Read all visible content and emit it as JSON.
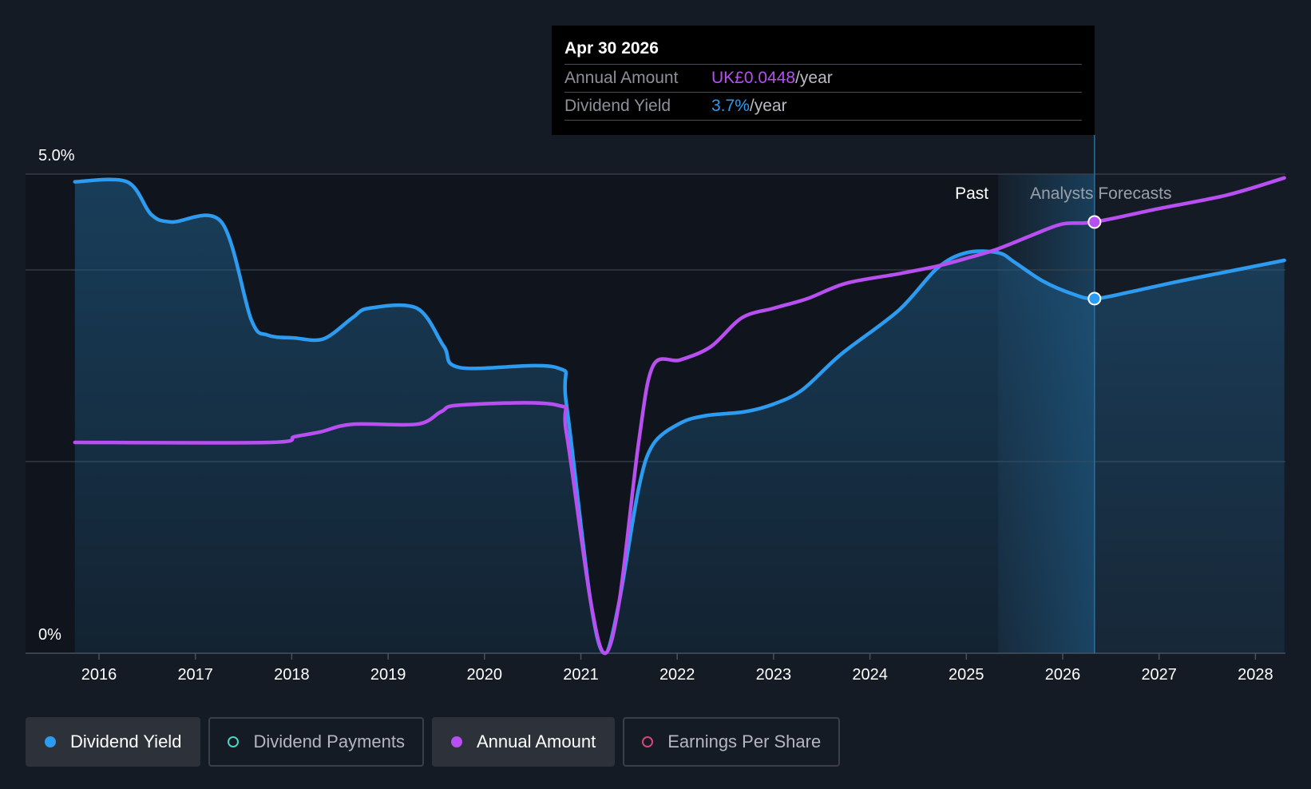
{
  "tooltip": {
    "date": "Apr 30 2026",
    "rows": [
      {
        "name": "Annual Amount",
        "value": "UK£0.0448",
        "unit": "/year"
      },
      {
        "name": "Dividend Yield",
        "value": "3.7%",
        "unit": "/year"
      }
    ]
  },
  "regions": {
    "past": "Past",
    "forecast": "Analysts Forecasts"
  },
  "legend": [
    {
      "label": "Dividend Yield",
      "color": "#2d9cf0",
      "active": true,
      "filled": true
    },
    {
      "label": "Dividend Payments",
      "color": "#4fd1c5",
      "active": false,
      "filled": false
    },
    {
      "label": "Annual Amount",
      "color": "#b84ff0",
      "active": true,
      "filled": true
    },
    {
      "label": "Earnings Per Share",
      "color": "#d6457a",
      "active": false,
      "filled": false
    }
  ],
  "chart_data": {
    "type": "line",
    "title": "",
    "xlabel": "",
    "ylabel": "",
    "x_ticks": [
      "2016",
      "2017",
      "2018",
      "2019",
      "2020",
      "2021",
      "2022",
      "2023",
      "2024",
      "2025",
      "2026",
      "2027",
      "2028"
    ],
    "y_tick_labels": [
      "5.0%",
      "0%"
    ],
    "ylim": [
      0,
      5.0
    ],
    "xlim": [
      2015.75,
      2028.3
    ],
    "grid": true,
    "legend_position": "bottom",
    "past_forecast_boundary": 2025.33,
    "tooltip_x": 2026.33,
    "series": [
      {
        "name": "Dividend Yield",
        "color": "#2d9cf0",
        "area": true,
        "points": [
          [
            2015.75,
            4.92
          ],
          [
            2016.29,
            4.92
          ],
          [
            2016.54,
            4.58
          ],
          [
            2016.75,
            4.5
          ],
          [
            2017.27,
            4.5
          ],
          [
            2017.58,
            3.48
          ],
          [
            2017.75,
            3.32
          ],
          [
            2018.03,
            3.29
          ],
          [
            2018.33,
            3.28
          ],
          [
            2018.63,
            3.5
          ],
          [
            2018.8,
            3.6
          ],
          [
            2019.3,
            3.6
          ],
          [
            2019.58,
            3.2
          ],
          [
            2019.75,
            2.98
          ],
          [
            2020.75,
            2.98
          ],
          [
            2020.85,
            2.6
          ],
          [
            2021.1,
            0.55
          ],
          [
            2021.25,
            0.0
          ],
          [
            2021.4,
            0.55
          ],
          [
            2021.6,
            1.72
          ],
          [
            2021.75,
            2.18
          ],
          [
            2022.03,
            2.4
          ],
          [
            2022.3,
            2.48
          ],
          [
            2022.7,
            2.52
          ],
          [
            2023.0,
            2.6
          ],
          [
            2023.3,
            2.75
          ],
          [
            2023.7,
            3.12
          ],
          [
            2024.3,
            3.58
          ],
          [
            2024.7,
            4.02
          ],
          [
            2025.0,
            4.18
          ],
          [
            2025.33,
            4.18
          ],
          [
            2025.5,
            4.08
          ],
          [
            2025.8,
            3.88
          ],
          [
            2026.1,
            3.75
          ],
          [
            2026.33,
            3.7
          ],
          [
            2026.7,
            3.77
          ],
          [
            2027.2,
            3.88
          ],
          [
            2027.8,
            4.0
          ],
          [
            2028.3,
            4.1
          ]
        ]
      },
      {
        "name": "Annual Amount",
        "color": "#b84ff0",
        "area": false,
        "points": [
          [
            2015.75,
            2.2
          ],
          [
            2017.77,
            2.2
          ],
          [
            2018.03,
            2.26
          ],
          [
            2018.3,
            2.31
          ],
          [
            2018.63,
            2.39
          ],
          [
            2019.3,
            2.39
          ],
          [
            2019.55,
            2.52
          ],
          [
            2019.75,
            2.59
          ],
          [
            2020.75,
            2.59
          ],
          [
            2020.85,
            2.3
          ],
          [
            2021.1,
            0.55
          ],
          [
            2021.25,
            0.0
          ],
          [
            2021.4,
            0.55
          ],
          [
            2021.6,
            2.2
          ],
          [
            2021.75,
            3.0
          ],
          [
            2022.03,
            3.06
          ],
          [
            2022.35,
            3.2
          ],
          [
            2022.67,
            3.5
          ],
          [
            2023.0,
            3.6
          ],
          [
            2023.35,
            3.7
          ],
          [
            2023.75,
            3.86
          ],
          [
            2024.3,
            3.96
          ],
          [
            2024.7,
            4.04
          ],
          [
            2025.0,
            4.12
          ],
          [
            2025.33,
            4.22
          ],
          [
            2025.7,
            4.37
          ],
          [
            2026.0,
            4.48
          ],
          [
            2026.33,
            4.5
          ],
          [
            2027.0,
            4.64
          ],
          [
            2027.7,
            4.78
          ],
          [
            2028.3,
            4.96
          ]
        ]
      }
    ]
  }
}
